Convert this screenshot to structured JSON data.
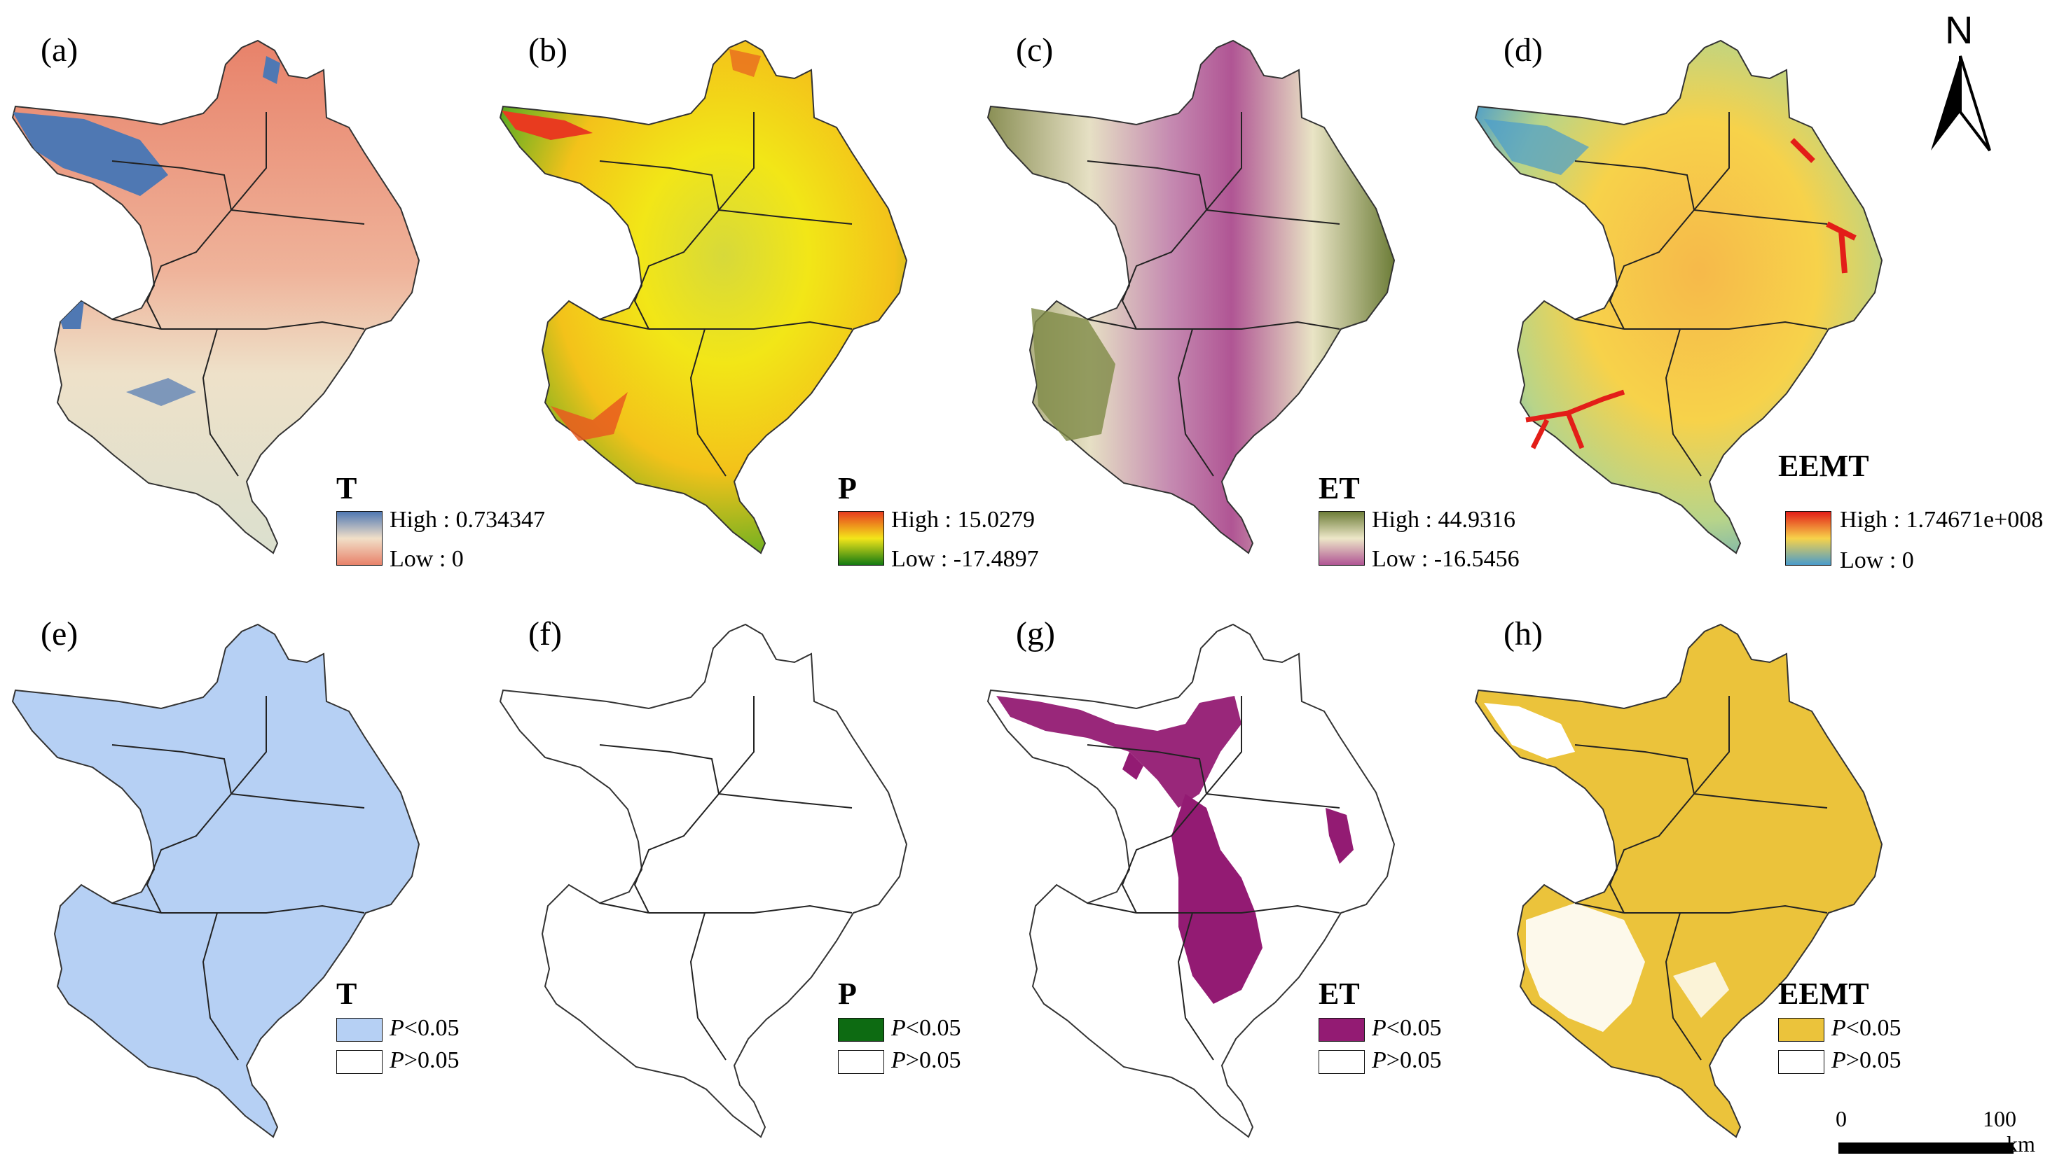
{
  "panels": [
    {
      "id": "a",
      "label": "(a)",
      "kind": "continuous",
      "var": "T",
      "high": "High : 0.734347",
      "low": "Low : 0",
      "colors": {
        "low": "#e8826a",
        "mid": "#f1dfc8",
        "high": "#4f78b3"
      }
    },
    {
      "id": "b",
      "label": "(b)",
      "kind": "continuous",
      "var": "P",
      "high": "High : 15.0279",
      "low": "Low : -17.4897",
      "colors": {
        "low": "#137a12",
        "mid": "#f3e51a",
        "high": "#e83b1f"
      }
    },
    {
      "id": "c",
      "label": "(c)",
      "kind": "continuous",
      "var": "ET",
      "high": "High : 44.9316",
      "low": "Low : -16.5456",
      "colors": {
        "low": "#b05594",
        "mid": "#ede7c8",
        "high": "#6d7d38"
      }
    },
    {
      "id": "d",
      "label": "(d)",
      "kind": "continuous",
      "var": "EEMT",
      "high": "High : 1.74671e+008",
      "low": "Low : 0",
      "colors": {
        "low": "#4a9ccc",
        "mid": "#f7d24a",
        "high": "#e31e18"
      }
    },
    {
      "id": "e",
      "label": "(e)",
      "kind": "significance",
      "var": "T",
      "sig": "<0.05",
      "nonsig": ">0.05",
      "color": "#b6d0f4"
    },
    {
      "id": "f",
      "label": "(f)",
      "kind": "significance",
      "var": "P",
      "sig": "<0.05",
      "nonsig": ">0.05",
      "color": "#0d6b12"
    },
    {
      "id": "g",
      "label": "(g)",
      "kind": "significance",
      "var": "ET",
      "sig": "<0.05",
      "nonsig": ">0.05",
      "color": "#931b73"
    },
    {
      "id": "h",
      "label": "(h)",
      "kind": "significance",
      "var": "EEMT",
      "sig": "<0.05",
      "nonsig": ">0.05",
      "color": "#ebc33b"
    }
  ],
  "north_arrow": "N",
  "scale": {
    "zero": "0",
    "max": "100",
    "unit": "km"
  }
}
